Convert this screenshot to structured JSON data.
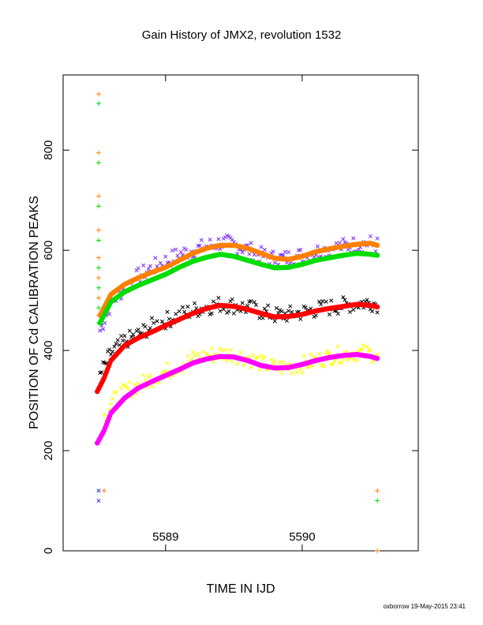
{
  "chart_data": {
    "type": "scatter",
    "title": "Gain History of JMX2, revolution 1532",
    "xlabel": "TIME IN IJD",
    "ylabel": "POSITION OF Cd CALIBRATION PEAKS",
    "xlim": [
      5588.25,
      5590.85
    ],
    "ylim": [
      0,
      950
    ],
    "x_ticks": [
      5589,
      5590
    ],
    "y_ticks": [
      0,
      200,
      400,
      600,
      800
    ],
    "grid": false,
    "footer": "oxborrow 19-May-2015 23:41",
    "series": [
      {
        "color": "#7b2fff",
        "marker": "x",
        "points": [
          [
            5588.52,
            440
          ],
          [
            5588.6,
            495
          ],
          [
            5588.7,
            525
          ],
          [
            5588.8,
            548
          ],
          [
            5588.9,
            565
          ],
          [
            5589.0,
            578
          ],
          [
            5589.1,
            592
          ],
          [
            5589.2,
            600
          ],
          [
            5589.3,
            608
          ],
          [
            5589.4,
            615
          ],
          [
            5589.5,
            612
          ],
          [
            5589.6,
            602
          ],
          [
            5589.7,
            590
          ],
          [
            5589.8,
            583
          ],
          [
            5589.9,
            585
          ],
          [
            5590.0,
            590
          ],
          [
            5590.1,
            597
          ],
          [
            5590.2,
            603
          ],
          [
            5590.3,
            608
          ],
          [
            5590.4,
            612
          ],
          [
            5590.5,
            614
          ],
          [
            5590.55,
            610
          ]
        ]
      },
      {
        "color": "#ff8000",
        "marker": "smooth",
        "points": [
          [
            5588.52,
            470
          ],
          [
            5588.6,
            512
          ],
          [
            5588.7,
            532
          ],
          [
            5588.8,
            545
          ],
          [
            5588.9,
            556
          ],
          [
            5589.0,
            566
          ],
          [
            5589.1,
            580
          ],
          [
            5589.2,
            594
          ],
          [
            5589.3,
            604
          ],
          [
            5589.4,
            610
          ],
          [
            5589.5,
            610
          ],
          [
            5589.6,
            604
          ],
          [
            5589.7,
            594
          ],
          [
            5589.8,
            584
          ],
          [
            5589.9,
            582
          ],
          [
            5590.0,
            588
          ],
          [
            5590.1,
            597
          ],
          [
            5590.2,
            603
          ],
          [
            5590.3,
            608
          ],
          [
            5590.4,
            612
          ],
          [
            5590.5,
            614
          ],
          [
            5590.55,
            610
          ]
        ]
      },
      {
        "color": "#00dd00",
        "marker": "smooth",
        "points": [
          [
            5588.52,
            455
          ],
          [
            5588.6,
            497
          ],
          [
            5588.7,
            517
          ],
          [
            5588.8,
            530
          ],
          [
            5588.9,
            541
          ],
          [
            5589.0,
            552
          ],
          [
            5589.1,
            566
          ],
          [
            5589.2,
            578
          ],
          [
            5589.3,
            586
          ],
          [
            5589.4,
            592
          ],
          [
            5589.5,
            588
          ],
          [
            5589.6,
            580
          ],
          [
            5589.7,
            572
          ],
          [
            5589.8,
            565
          ],
          [
            5589.9,
            566
          ],
          [
            5590.0,
            572
          ],
          [
            5590.1,
            580
          ],
          [
            5590.2,
            585
          ],
          [
            5590.3,
            590
          ],
          [
            5590.4,
            594
          ],
          [
            5590.5,
            592
          ],
          [
            5590.55,
            590
          ]
        ]
      },
      {
        "color": "#000000",
        "marker": "x",
        "points": [
          [
            5588.52,
            350
          ],
          [
            5588.6,
            395
          ],
          [
            5588.7,
            418
          ],
          [
            5588.8,
            432
          ],
          [
            5588.9,
            448
          ],
          [
            5589.0,
            460
          ],
          [
            5589.1,
            470
          ],
          [
            5589.2,
            480
          ],
          [
            5589.3,
            487
          ],
          [
            5589.4,
            492
          ],
          [
            5589.5,
            490
          ],
          [
            5589.6,
            485
          ],
          [
            5589.7,
            478
          ],
          [
            5589.8,
            470
          ],
          [
            5589.9,
            472
          ],
          [
            5590.0,
            476
          ],
          [
            5590.1,
            482
          ],
          [
            5590.2,
            486
          ],
          [
            5590.3,
            490
          ],
          [
            5590.4,
            494
          ],
          [
            5590.5,
            496
          ],
          [
            5590.55,
            493
          ]
        ]
      },
      {
        "color": "#ff0000",
        "marker": "smooth",
        "points": [
          [
            5588.5,
            318
          ],
          [
            5588.55,
            345
          ],
          [
            5588.6,
            380
          ],
          [
            5588.7,
            410
          ],
          [
            5588.8,
            425
          ],
          [
            5588.9,
            437
          ],
          [
            5589.0,
            450
          ],
          [
            5589.1,
            462
          ],
          [
            5589.2,
            474
          ],
          [
            5589.3,
            484
          ],
          [
            5589.4,
            490
          ],
          [
            5589.5,
            488
          ],
          [
            5589.6,
            482
          ],
          [
            5589.7,
            474
          ],
          [
            5589.8,
            467
          ],
          [
            5589.9,
            468
          ],
          [
            5590.0,
            472
          ],
          [
            5590.1,
            479
          ],
          [
            5590.2,
            484
          ],
          [
            5590.3,
            488
          ],
          [
            5590.4,
            492
          ],
          [
            5590.5,
            490
          ],
          [
            5590.55,
            487
          ]
        ]
      },
      {
        "color": "#ffff00",
        "marker": "x",
        "points": [
          [
            5588.55,
            268
          ],
          [
            5588.6,
            295
          ],
          [
            5588.7,
            318
          ],
          [
            5588.8,
            330
          ],
          [
            5588.9,
            345
          ],
          [
            5589.0,
            358
          ],
          [
            5589.1,
            370
          ],
          [
            5589.2,
            383
          ],
          [
            5589.3,
            390
          ],
          [
            5589.4,
            394
          ],
          [
            5589.5,
            392
          ],
          [
            5589.6,
            385
          ],
          [
            5589.7,
            374
          ],
          [
            5589.8,
            366
          ],
          [
            5589.9,
            367
          ],
          [
            5590.0,
            372
          ],
          [
            5590.1,
            380
          ],
          [
            5590.2,
            388
          ],
          [
            5590.3,
            393
          ],
          [
            5590.4,
            396
          ],
          [
            5590.5,
            394
          ],
          [
            5590.55,
            392
          ]
        ]
      },
      {
        "color": "#ff00ff",
        "marker": "smooth",
        "points": [
          [
            5588.5,
            215
          ],
          [
            5588.55,
            240
          ],
          [
            5588.6,
            275
          ],
          [
            5588.7,
            305
          ],
          [
            5588.8,
            325
          ],
          [
            5588.9,
            338
          ],
          [
            5589.0,
            350
          ],
          [
            5589.1,
            362
          ],
          [
            5589.2,
            375
          ],
          [
            5589.3,
            383
          ],
          [
            5589.4,
            388
          ],
          [
            5589.5,
            387
          ],
          [
            5589.6,
            380
          ],
          [
            5589.7,
            370
          ],
          [
            5589.8,
            365
          ],
          [
            5589.9,
            366
          ],
          [
            5590.0,
            372
          ],
          [
            5590.1,
            380
          ],
          [
            5590.2,
            386
          ],
          [
            5590.3,
            390
          ],
          [
            5590.4,
            392
          ],
          [
            5590.5,
            388
          ],
          [
            5590.55,
            384
          ]
        ]
      },
      {
        "color": "#ff8000",
        "marker": "+",
        "points": [
          [
            5588.51,
            912
          ],
          [
            5588.51,
            795
          ],
          [
            5588.51,
            708
          ],
          [
            5588.51,
            640
          ],
          [
            5588.51,
            585
          ],
          [
            5588.51,
            545
          ],
          [
            5588.51,
            505
          ],
          [
            5588.51,
            470
          ],
          [
            5588.55,
            120
          ],
          [
            5590.55,
            120
          ],
          [
            5590.55,
            0
          ]
        ]
      },
      {
        "color": "#00dd00",
        "marker": "+",
        "points": [
          [
            5588.51,
            893
          ],
          [
            5588.51,
            775
          ],
          [
            5588.51,
            688
          ],
          [
            5588.51,
            620
          ],
          [
            5588.51,
            565
          ],
          [
            5588.51,
            525
          ],
          [
            5588.51,
            485
          ],
          [
            5588.51,
            455
          ],
          [
            5590.55,
            100
          ]
        ]
      },
      {
        "color": "#3333ff",
        "marker": "x",
        "points": [
          [
            5588.51,
            120
          ],
          [
            5588.51,
            100
          ]
        ]
      }
    ]
  }
}
